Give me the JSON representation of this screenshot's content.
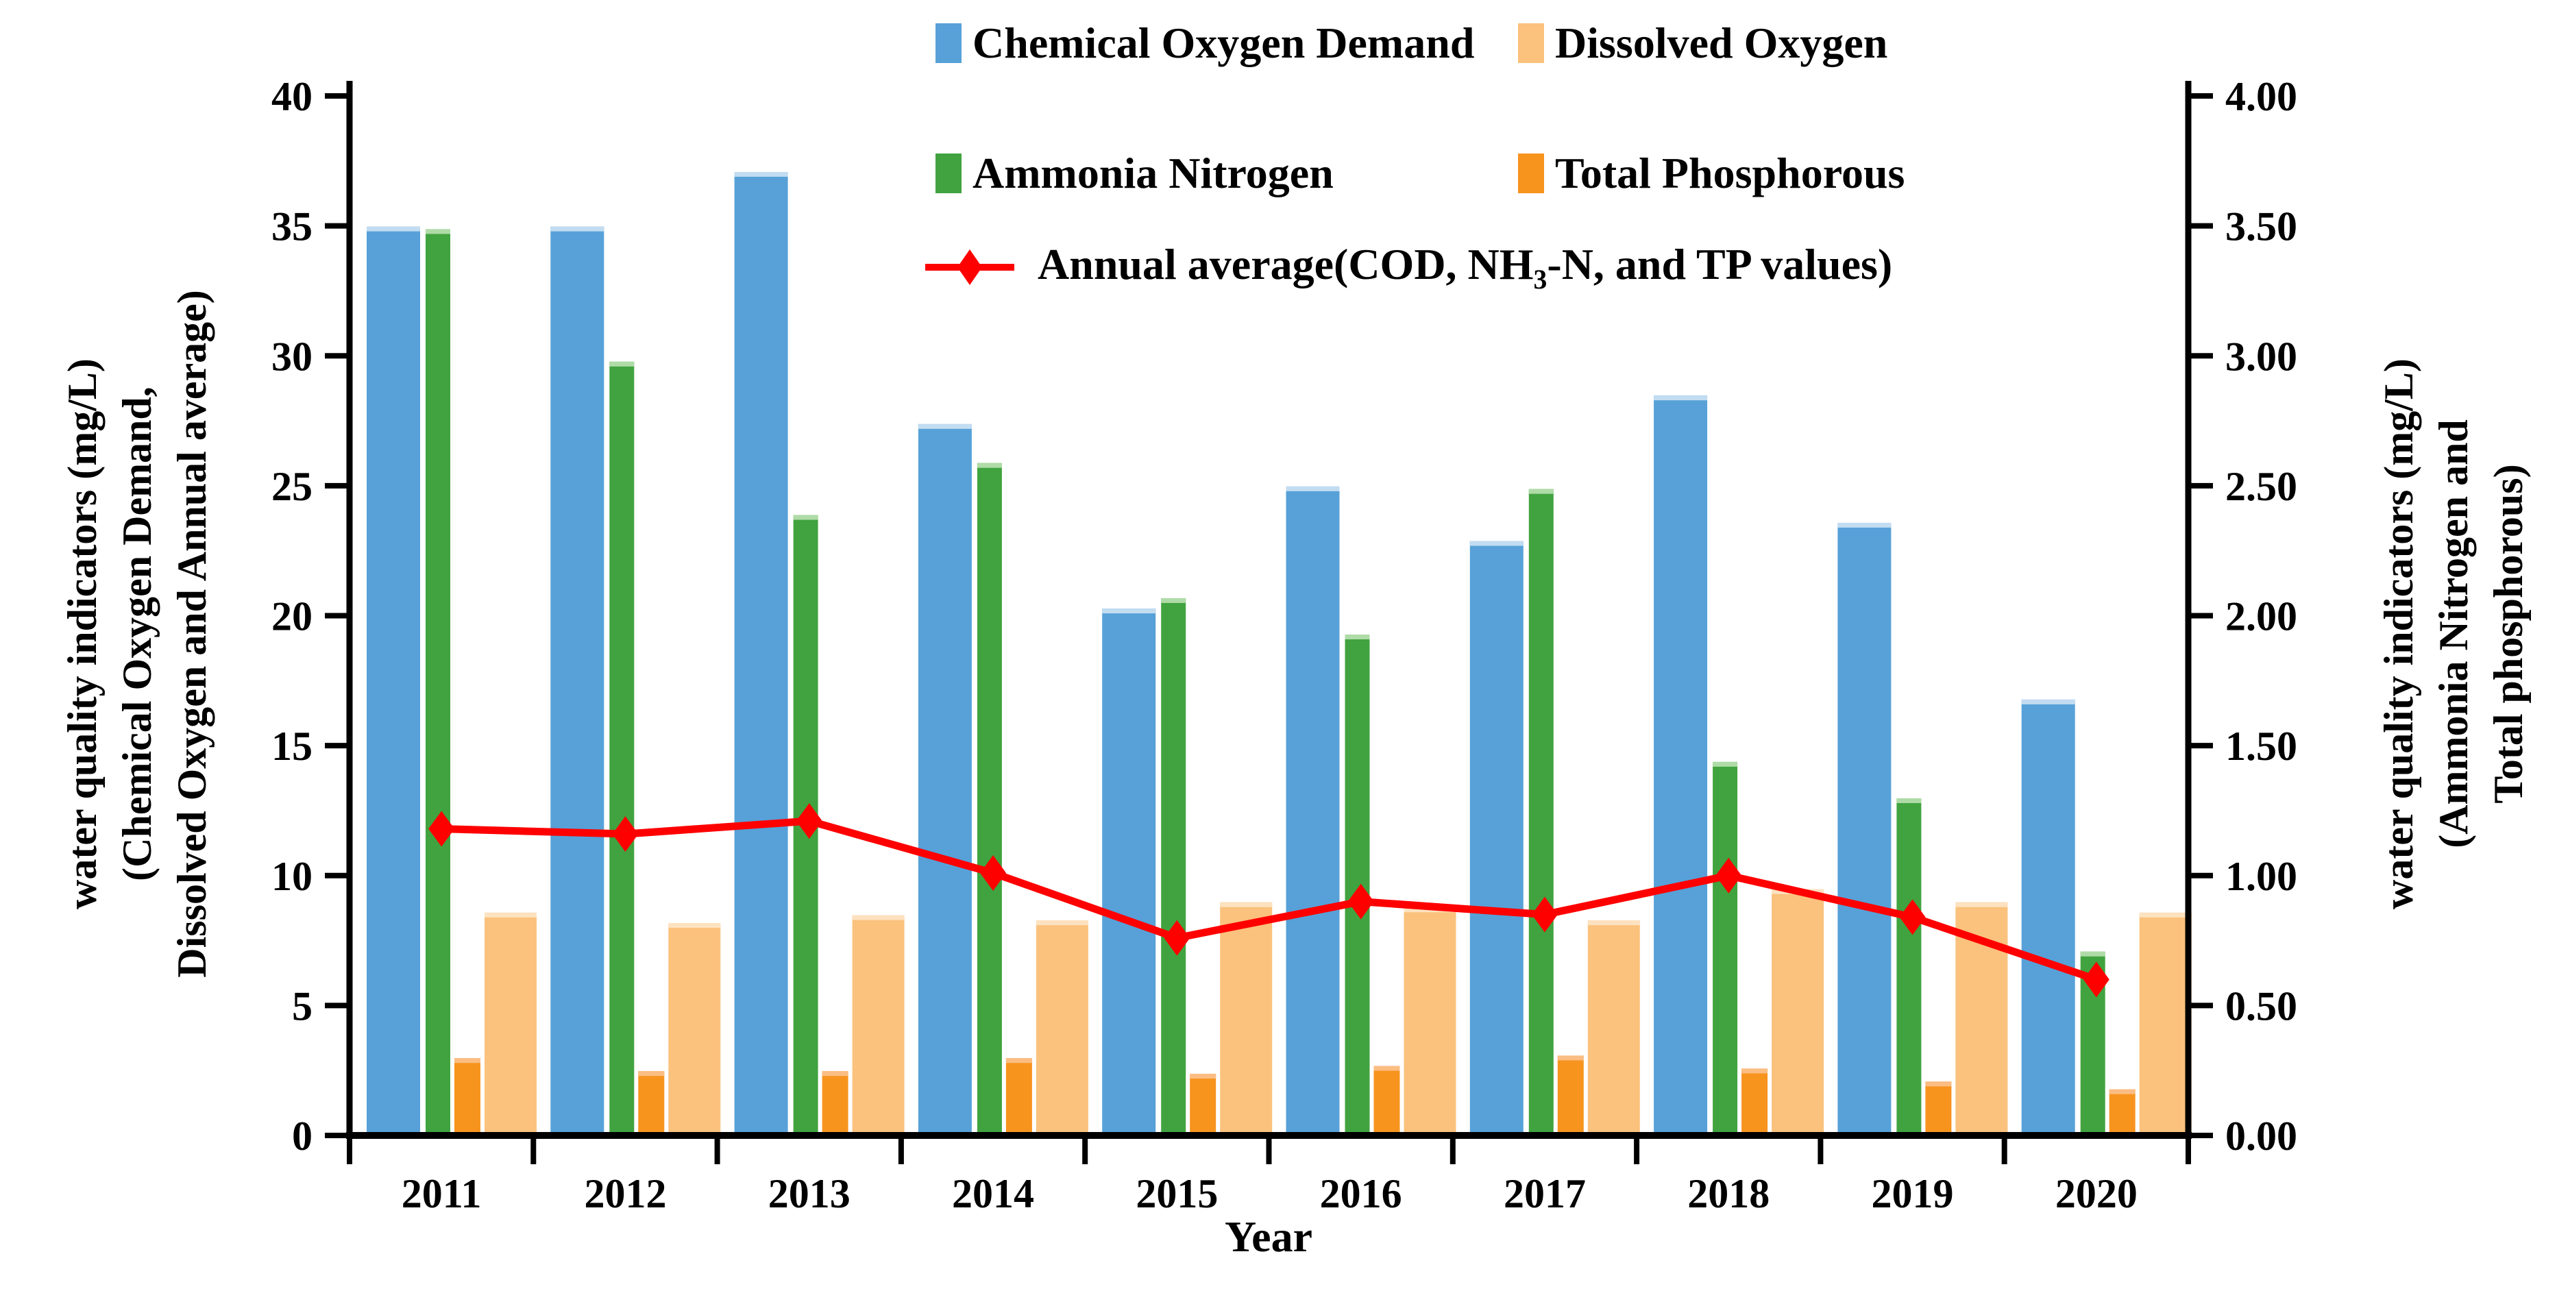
{
  "chart_data": {
    "type": "bar",
    "title": "",
    "categories": [
      "2011",
      "2012",
      "2013",
      "2014",
      "2015",
      "2016",
      "2017",
      "2018",
      "2019",
      "2020"
    ],
    "xlabel": "Year",
    "grid": false,
    "legend_position": "top-center",
    "left_axis": {
      "title_lines": [
        "water quality indicators (mg/L)",
        "(Chemical Oxygen Demand,",
        "Dissolved Oxygen and Annual average)"
      ],
      "min": 0,
      "max": 40,
      "ticks": [
        "0",
        "5",
        "10",
        "15",
        "20",
        "25",
        "30",
        "35",
        "40"
      ]
    },
    "right_axis": {
      "title_lines": [
        "water quality indicators (mg/L)",
        "(Ammonia Nitrogen and",
        "Total phosphorous)"
      ],
      "min": 0,
      "max": 4,
      "ticks": [
        "0.00",
        "0.50",
        "1.00",
        "1.50",
        "2.00",
        "2.50",
        "3.00",
        "3.50",
        "4.00"
      ]
    },
    "series": [
      {
        "id": "cod",
        "name": "Chemical Oxygen Demand",
        "axis": "left",
        "color": "#57a1d8",
        "cap_color": "#c2dcf1",
        "values": [
          35.0,
          35.0,
          37.1,
          27.4,
          20.3,
          25.0,
          22.9,
          28.5,
          23.6,
          16.8
        ]
      },
      {
        "id": "an",
        "name": "Ammonia Nitrogen",
        "axis": "right",
        "color": "#41a33f",
        "cap_color": "#afdba7",
        "values": [
          3.49,
          2.98,
          2.39,
          2.59,
          2.07,
          1.93,
          2.49,
          1.44,
          1.3,
          0.71
        ]
      },
      {
        "id": "tp",
        "name": "Total Phosphorous",
        "axis": "right",
        "color": "#f7941e",
        "cap_color": "#fbbd83",
        "values": [
          0.3,
          0.25,
          0.25,
          0.3,
          0.24,
          0.27,
          0.31,
          0.26,
          0.21,
          0.18
        ]
      },
      {
        "id": "do",
        "name": "Dissolved Oxygen",
        "axis": "left",
        "color": "#fbc27d",
        "cap_color": "#fde2c0",
        "values": [
          8.6,
          8.2,
          8.5,
          8.3,
          9.0,
          8.8,
          8.3,
          9.5,
          9.0,
          8.6
        ]
      }
    ],
    "line_series": {
      "id": "avg",
      "name": "Annual average(COD, NH3-N, and TP values)",
      "axis": "left",
      "color": "#fe0000",
      "values": [
        11.8,
        11.6,
        12.1,
        10.1,
        7.6,
        9.0,
        8.5,
        10.0,
        8.4,
        6.0
      ]
    }
  },
  "legend": {
    "cod": "Chemical Oxygen Demand",
    "do": "Dissolved Oxygen",
    "an": "Ammonia Nitrogen",
    "tp": "Total Phosphorous",
    "avg_pre": "Annual average(COD, NH",
    "avg_sub": "3",
    "avg_post": "-N, and TP values)"
  },
  "axes": {
    "left_title_1": "water quality indicators (mg/L)",
    "left_title_2": "(Chemical Oxygen Demand,",
    "left_title_3": "Dissolved Oxygen and Annual average)",
    "right_title_1": "water quality indicators (mg/L)",
    "right_title_2": "(Ammonia Nitrogen and",
    "right_title_3": "Total phosphorous)",
    "xlabel": "Year"
  }
}
